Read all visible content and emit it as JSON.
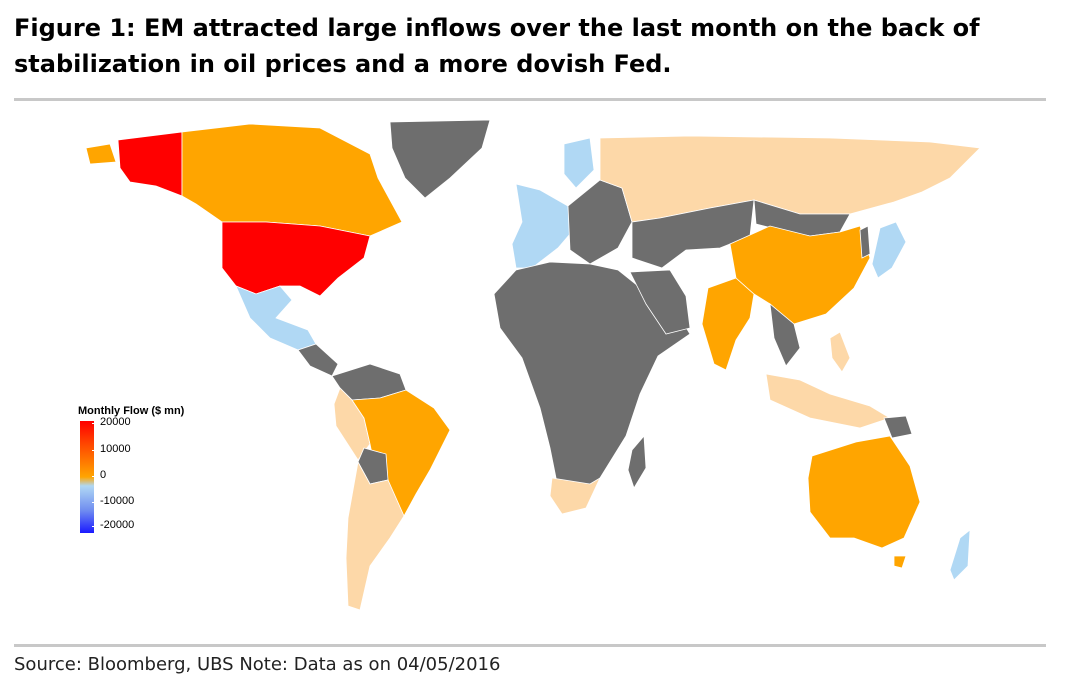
{
  "figure": {
    "title": "Figure 1: EM attracted large inflows over the last month on the back of stabilization in oil prices and a more dovish Fed.",
    "source": "Source: Bloomberg, UBS Note: Data as on 04/05/2016"
  },
  "legend": {
    "title": "Monthly Flow ($ mn)",
    "ticks": [
      "20000",
      "10000",
      "0",
      "-10000",
      "-20000"
    ]
  },
  "colors": {
    "high_inflow": "#ff0000",
    "medium_inflow": "#ffa500",
    "small_inflow": "#fdd8a8",
    "small_outflow": "#b0d8f4",
    "no_data": "#6e6e6e",
    "ocean": "#ffffff"
  },
  "regions": [
    {
      "name": "USA",
      "flow": "high_inflow"
    },
    {
      "name": "Alaska",
      "flow": "high_inflow"
    },
    {
      "name": "Canada",
      "flow": "medium_inflow"
    },
    {
      "name": "Greenland",
      "flow": "no_data"
    },
    {
      "name": "Mexico",
      "flow": "small_outflow"
    },
    {
      "name": "Brazil",
      "flow": "medium_inflow"
    },
    {
      "name": "Southern Cone",
      "flow": "small_inflow"
    },
    {
      "name": "Africa",
      "flow": "no_data"
    },
    {
      "name": "South Africa",
      "flow": "small_inflow"
    },
    {
      "name": "Western Europe",
      "flow": "small_outflow"
    },
    {
      "name": "Eastern Europe",
      "flow": "no_data"
    },
    {
      "name": "Russia",
      "flow": "small_inflow"
    },
    {
      "name": "China",
      "flow": "medium_inflow"
    },
    {
      "name": "India",
      "flow": "medium_inflow"
    },
    {
      "name": "Japan",
      "flow": "small_outflow"
    },
    {
      "name": "Indonesia",
      "flow": "small_inflow"
    },
    {
      "name": "Australia",
      "flow": "medium_inflow"
    }
  ]
}
